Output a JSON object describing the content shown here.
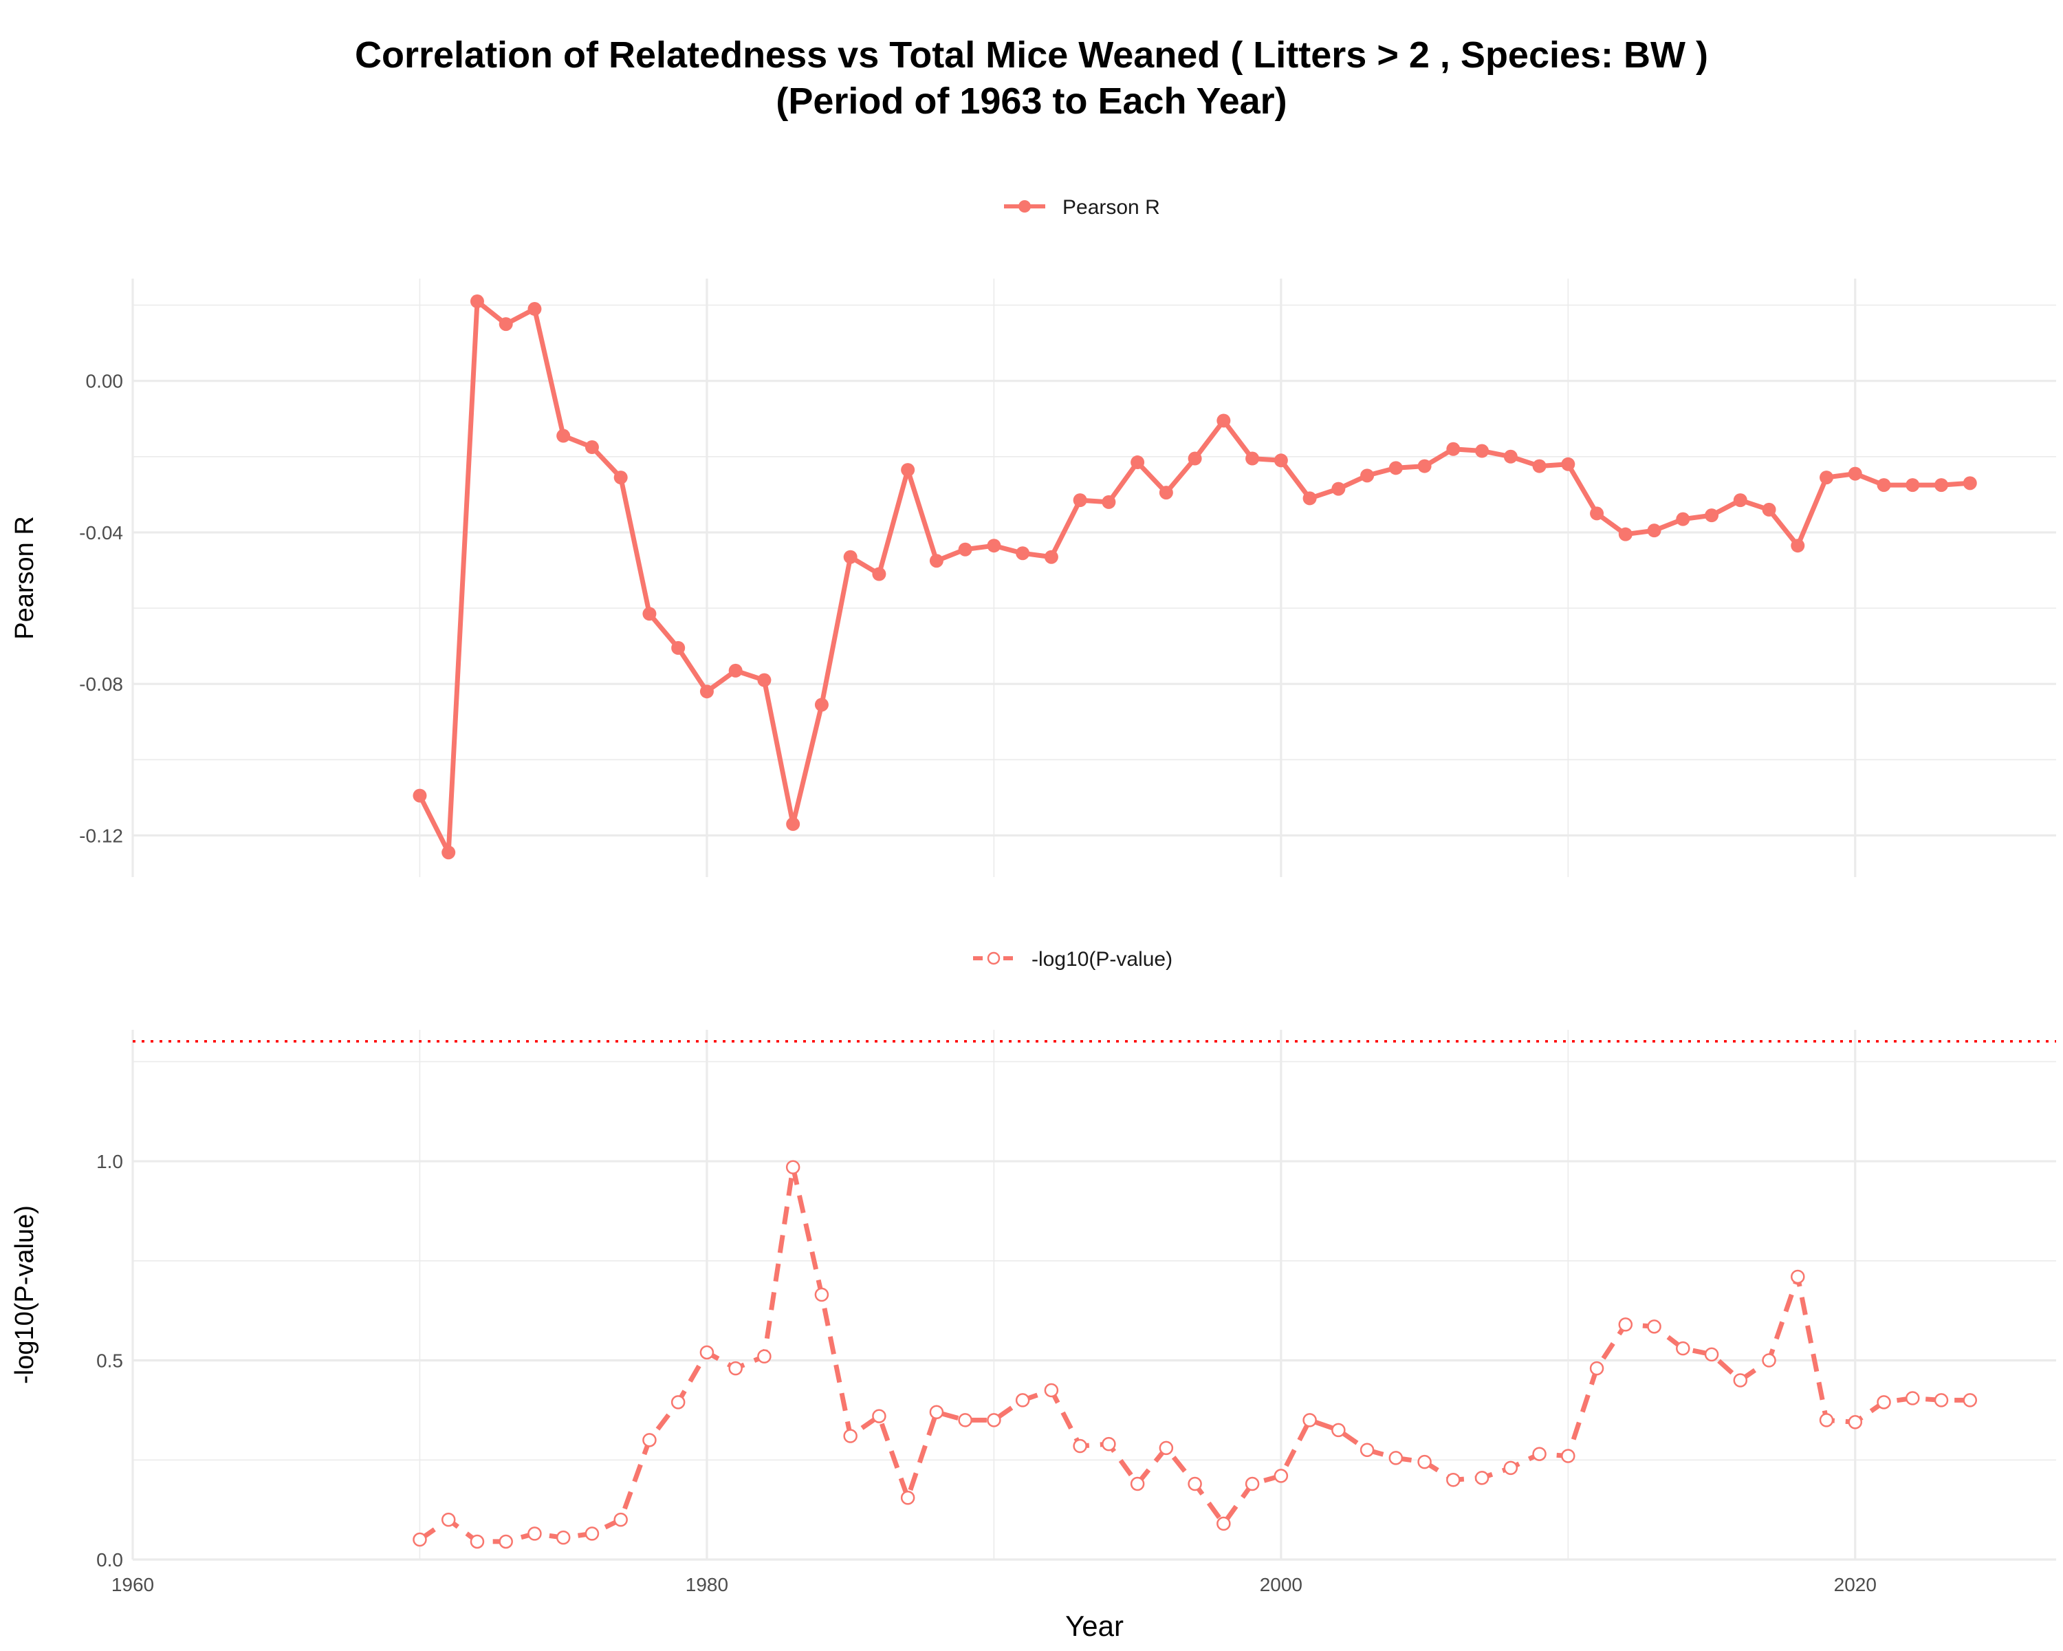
{
  "title_line1": "Correlation of Relatedness vs Total Mice Weaned ( Litters > 2 , Species: BW )",
  "title_line2": "(Period of 1963 to Each Year)",
  "colors": {
    "series": "#F8766D",
    "threshold": "#FF0000",
    "grid": "#EBEBEB"
  },
  "chart_data": [
    {
      "type": "line",
      "panel": "top",
      "legend": "Pearson R",
      "legend_position": "top-center",
      "ylabel": "Pearson R",
      "xlabel": "",
      "xlim": [
        1960,
        2027
      ],
      "ylim": [
        -0.131,
        0.027
      ],
      "x_ticks": [
        1960,
        1980,
        2000,
        2020
      ],
      "y_ticks": [
        0.0,
        -0.04,
        -0.08,
        -0.12
      ],
      "y_tick_labels": [
        "0.00",
        "-0.04",
        "-0.08",
        "-0.12"
      ],
      "grid": true,
      "x": [
        1970,
        1971,
        1972,
        1973,
        1974,
        1975,
        1976,
        1977,
        1978,
        1979,
        1980,
        1981,
        1982,
        1983,
        1984,
        1985,
        1986,
        1987,
        1988,
        1989,
        1990,
        1991,
        1992,
        1993,
        1994,
        1995,
        1996,
        1997,
        1998,
        1999,
        2000,
        2001,
        2002,
        2003,
        2004,
        2005,
        2006,
        2007,
        2008,
        2009,
        2010,
        2011,
        2012,
        2013,
        2014,
        2015,
        2016,
        2017,
        2018,
        2019,
        2020,
        2021,
        2022,
        2023,
        2024
      ],
      "y": [
        -0.1095,
        -0.1245,
        0.021,
        0.015,
        0.019,
        -0.0145,
        -0.0175,
        -0.0255,
        -0.0615,
        -0.0705,
        -0.082,
        -0.0765,
        -0.079,
        -0.117,
        -0.0855,
        -0.0465,
        -0.051,
        -0.0235,
        -0.0475,
        -0.0445,
        -0.0435,
        -0.0455,
        -0.0465,
        -0.0315,
        -0.032,
        -0.0215,
        -0.0295,
        -0.0205,
        -0.0105,
        -0.0205,
        -0.021,
        -0.031,
        -0.0285,
        -0.025,
        -0.023,
        -0.0225,
        -0.018,
        -0.0185,
        -0.02,
        -0.0225,
        -0.022,
        -0.035,
        -0.0405,
        -0.0395,
        -0.0365,
        -0.0355,
        -0.0315,
        -0.034,
        -0.0435,
        -0.0255,
        -0.0245,
        -0.0275,
        -0.0275,
        -0.0275,
        -0.027
      ]
    },
    {
      "type": "line",
      "panel": "bottom",
      "legend": "-log10(P-value)",
      "legend_position": "top-center",
      "ylabel": "-log10(P-value)",
      "xlabel": "Year",
      "xlim": [
        1960,
        2027
      ],
      "ylim": [
        0,
        1.33
      ],
      "x_ticks": [
        1960,
        1980,
        2000,
        2020
      ],
      "x_tick_labels": [
        "1960",
        "1980",
        "2000",
        "2020"
      ],
      "y_ticks": [
        0.0,
        0.5,
        1.0
      ],
      "y_tick_labels": [
        "0.0",
        "0.5",
        "1.0"
      ],
      "threshold": 1.301,
      "grid": true,
      "x": [
        1970,
        1971,
        1972,
        1973,
        1974,
        1975,
        1976,
        1977,
        1978,
        1979,
        1980,
        1981,
        1982,
        1983,
        1984,
        1985,
        1986,
        1987,
        1988,
        1989,
        1990,
        1991,
        1992,
        1993,
        1994,
        1995,
        1996,
        1997,
        1998,
        1999,
        2000,
        2001,
        2002,
        2003,
        2004,
        2005,
        2006,
        2007,
        2008,
        2009,
        2010,
        2011,
        2012,
        2013,
        2014,
        2015,
        2016,
        2017,
        2018,
        2019,
        2020,
        2021,
        2022,
        2023,
        2024
      ],
      "y": [
        0.05,
        0.1,
        0.045,
        0.045,
        0.065,
        0.055,
        0.065,
        0.1,
        0.3,
        0.395,
        0.52,
        0.48,
        0.51,
        0.985,
        0.665,
        0.31,
        0.36,
        0.155,
        0.37,
        0.35,
        0.35,
        0.4,
        0.425,
        0.285,
        0.29,
        0.19,
        0.28,
        0.19,
        0.09,
        0.19,
        0.21,
        0.35,
        0.325,
        0.275,
        0.255,
        0.245,
        0.2,
        0.205,
        0.23,
        0.265,
        0.26,
        0.48,
        0.59,
        0.585,
        0.53,
        0.515,
        0.45,
        0.5,
        0.71,
        0.35,
        0.345,
        0.395,
        0.405,
        0.4,
        0.4
      ]
    }
  ]
}
